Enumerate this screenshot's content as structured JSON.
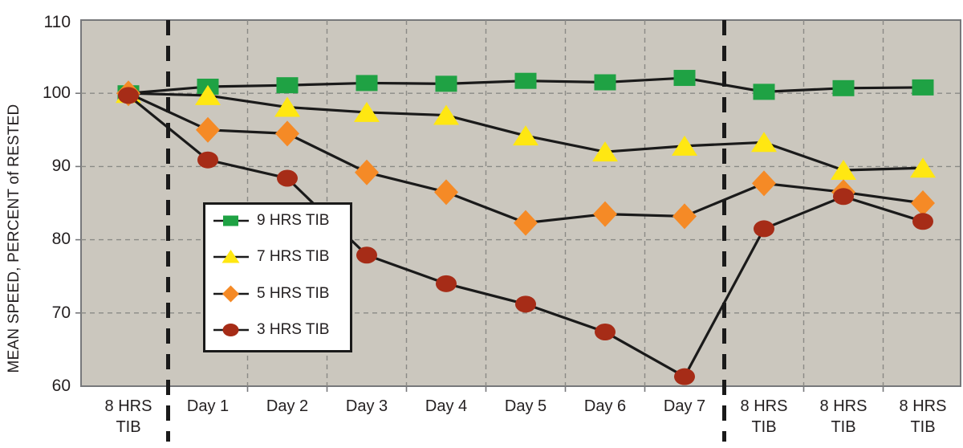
{
  "chart_data": {
    "type": "line",
    "title": "",
    "xlabel": "",
    "ylabel": "MEAN SPEED, PERCENT of RESTED",
    "ylim": [
      60,
      110
    ],
    "yticks": [
      "110",
      "100",
      "90",
      "80",
      "70",
      "60"
    ],
    "grid": "dashed",
    "legend_position": "middle-left",
    "categories": [
      "8 HRS\nTIB",
      "Day 1",
      "Day 2",
      "Day 3",
      "Day 4",
      "Day 5",
      "Day 6",
      "Day 7",
      "8 HRS\nTIB",
      "8 HRS\nTIB",
      "8 HRS\nTIB"
    ],
    "separators_after_index": [
      0,
      7
    ],
    "colors": {
      "plot_bg": "#CBC7BE",
      "grid": "#8A8A86",
      "frame": "#77787B",
      "line": "#1A1A1A",
      "text": "#231F20"
    },
    "series": [
      {
        "name": "9 HRS TIB",
        "marker": "square",
        "color": "#1FA244",
        "values": [
          100,
          100.9,
          101.1,
          101.4,
          101.3,
          101.7,
          101.5,
          102.1,
          100.2,
          100.7,
          100.8
        ]
      },
      {
        "name": "7 HRS TIB",
        "marker": "triangle",
        "color": "#FFE712",
        "values": [
          100,
          99.7,
          98.1,
          97.4,
          97.0,
          94.2,
          92.0,
          92.8,
          93.3,
          89.5,
          89.8
        ]
      },
      {
        "name": "5 HRS TIB",
        "marker": "diamond",
        "color": "#F58A26",
        "values": [
          100,
          95.0,
          94.5,
          89.2,
          86.5,
          82.3,
          83.5,
          83.2,
          87.7,
          86.5,
          85.0
        ]
      },
      {
        "name": "3 HRS TIB",
        "marker": "circle",
        "color": "#A62C17",
        "values": [
          99.7,
          90.9,
          88.4,
          77.9,
          74.0,
          71.2,
          67.4,
          61.3,
          81.5,
          85.9,
          82.5
        ]
      }
    ]
  }
}
